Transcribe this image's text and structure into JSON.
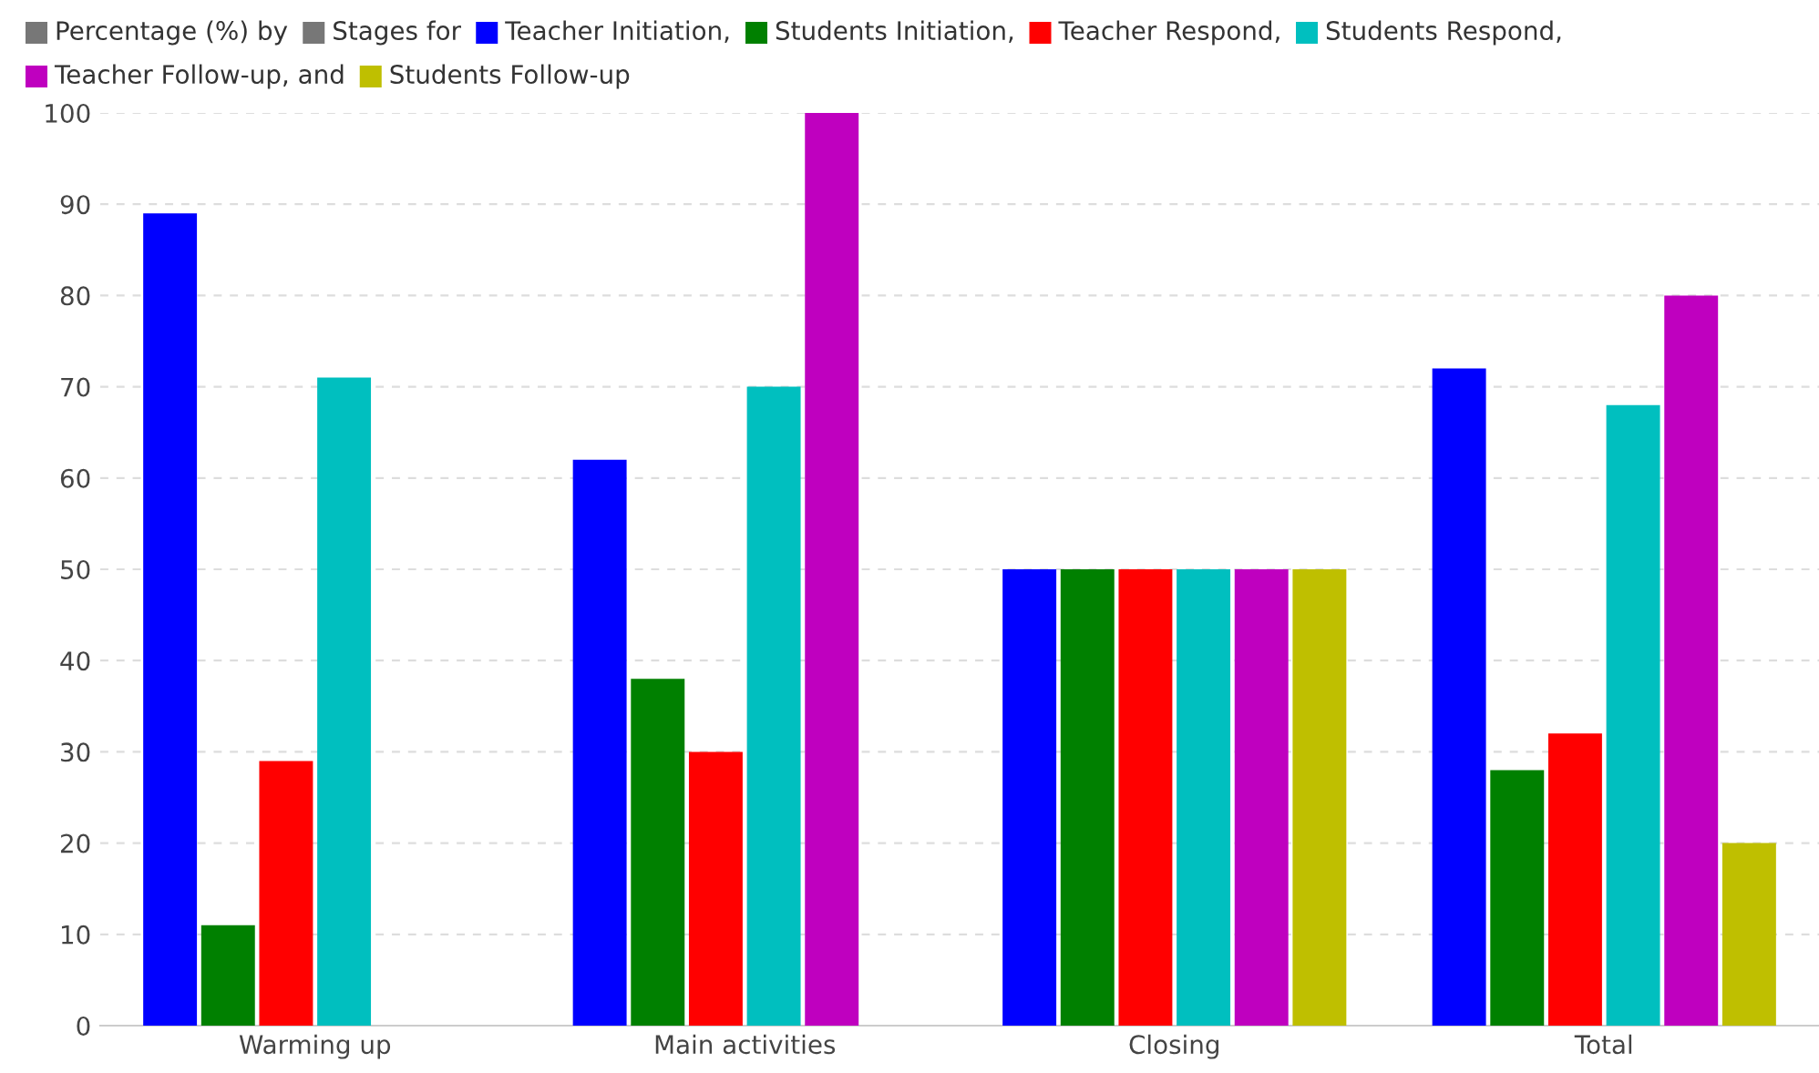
{
  "chart_data": {
    "type": "bar",
    "xlabel": "Stages for",
    "ylabel": "Percentage (%) by",
    "categories": [
      "Warming up",
      "Main activities",
      "Closing",
      "Total"
    ],
    "series": [
      {
        "name": "Teacher Initiation,",
        "color": "#0000ff",
        "values": [
          89,
          62,
          50,
          72
        ]
      },
      {
        "name": "Students Initiation,",
        "color": "#008000",
        "values": [
          11,
          38,
          50,
          28
        ]
      },
      {
        "name": "Teacher Respond,",
        "color": "#ff0000",
        "values": [
          29,
          30,
          50,
          32
        ]
      },
      {
        "name": "Students Respond,",
        "color": "#00bfbf",
        "values": [
          71,
          70,
          50,
          68
        ]
      },
      {
        "name": "Teacher Follow-up, and",
        "color": "#bf00bf",
        "values": [
          null,
          100,
          50,
          80
        ]
      },
      {
        "name": "Students Follow-up",
        "color": "#bfbf00",
        "values": [
          null,
          null,
          50,
          20
        ]
      }
    ],
    "ylim": [
      0,
      100
    ],
    "yticks": [
      0,
      10,
      20,
      30,
      40,
      50,
      60,
      70,
      80,
      90,
      100
    ],
    "grid": "y",
    "legend": "top left"
  }
}
